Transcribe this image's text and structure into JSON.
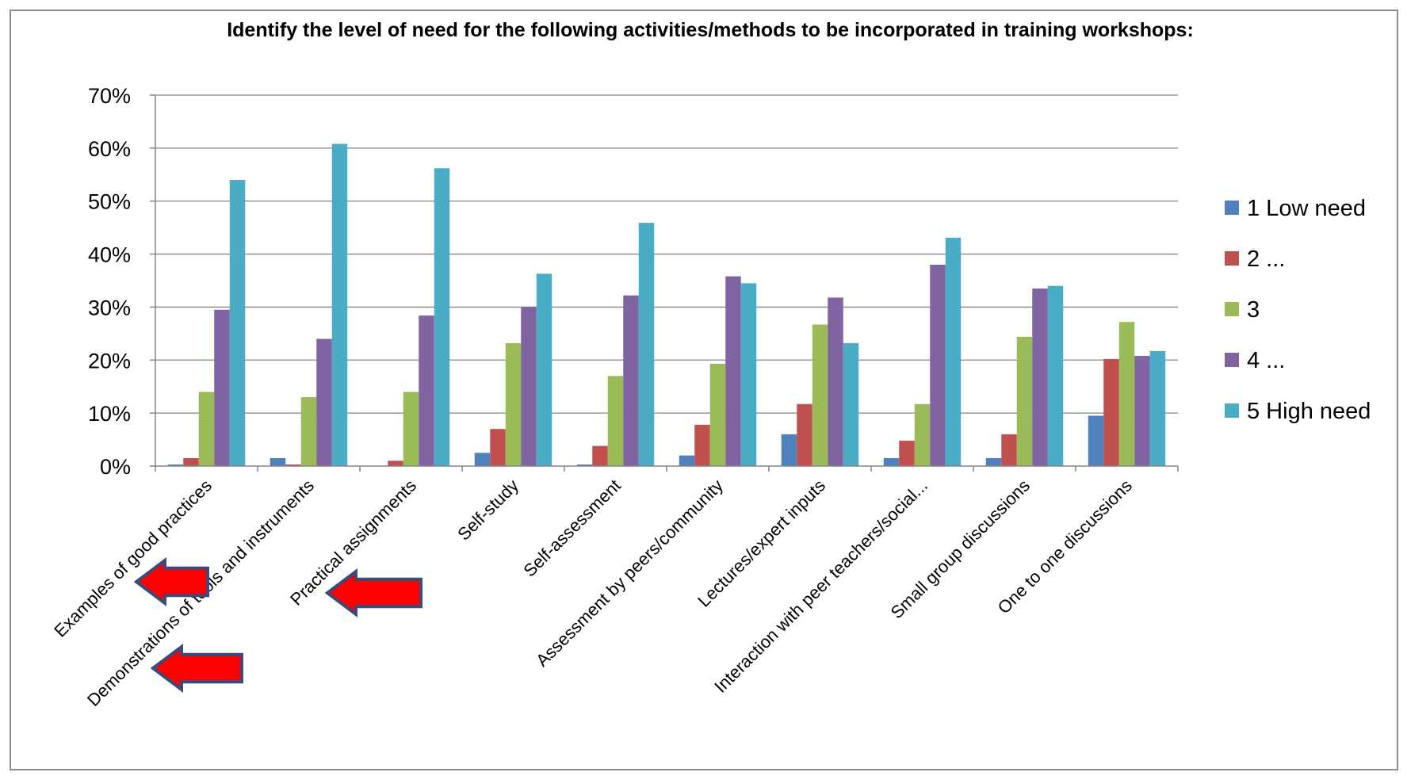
{
  "chart_data": {
    "type": "bar",
    "title": "Identify the level of need for the following activities/methods to be incorporated in training workshops:",
    "xlabel": "",
    "ylabel": "",
    "ylim": [
      0,
      70
    ],
    "yticks": [
      "0%",
      "10%",
      "20%",
      "30%",
      "40%",
      "50%",
      "60%",
      "70%"
    ],
    "ytick_values": [
      0,
      10,
      20,
      30,
      40,
      50,
      60,
      70
    ],
    "grid": true,
    "legend_position": "right",
    "categories": [
      "Examples of good practices",
      "Demonstrations of tools and instruments",
      "Practical assignments",
      "Self-study",
      "Self-assessment",
      "Assessment by peers/community",
      "Lectures/expert inputs",
      "Interaction with peer teachers/social...",
      "Small group discussions",
      "One to one discussions"
    ],
    "series": [
      {
        "name": "1 Low need",
        "color": "#4F81BD",
        "values": [
          0.3,
          1.5,
          0,
          2.5,
          0.3,
          2,
          6,
          1.5,
          1.5,
          9.5
        ]
      },
      {
        "name": "2 ...",
        "color": "#C0504D",
        "values": [
          1.5,
          0.3,
          1,
          7,
          3.8,
          7.8,
          11.7,
          4.8,
          6,
          20.2
        ]
      },
      {
        "name": "3",
        "color": "#9BBB59",
        "values": [
          14,
          13,
          14,
          23.2,
          17,
          19.3,
          26.7,
          11.7,
          24.4,
          27.2
        ]
      },
      {
        "name": "4 ...",
        "color": "#8064A2",
        "values": [
          29.5,
          24,
          28.4,
          30,
          32.2,
          35.8,
          31.8,
          38,
          33.5,
          20.8
        ]
      },
      {
        "name": "5 High need",
        "color": "#4BACC6",
        "values": [
          54,
          60.8,
          56.2,
          36.3,
          45.9,
          34.5,
          23.2,
          43.1,
          34,
          21.7
        ]
      }
    ],
    "annotations": [
      {
        "type": "arrow",
        "direction": "left",
        "color": "#FF0000",
        "outline": "#3B4A7A",
        "points_to": "Examples of good practices"
      },
      {
        "type": "arrow",
        "direction": "left",
        "color": "#FF0000",
        "outline": "#3B4A7A",
        "points_to": "Demonstrations of tools and instruments"
      },
      {
        "type": "arrow",
        "direction": "left",
        "color": "#FF0000",
        "outline": "#3B4A7A",
        "points_to": "Practical assignments"
      }
    ]
  },
  "colors": {
    "gridline": "#868686",
    "axis": "#868686",
    "frame": "#8c8c8c"
  }
}
